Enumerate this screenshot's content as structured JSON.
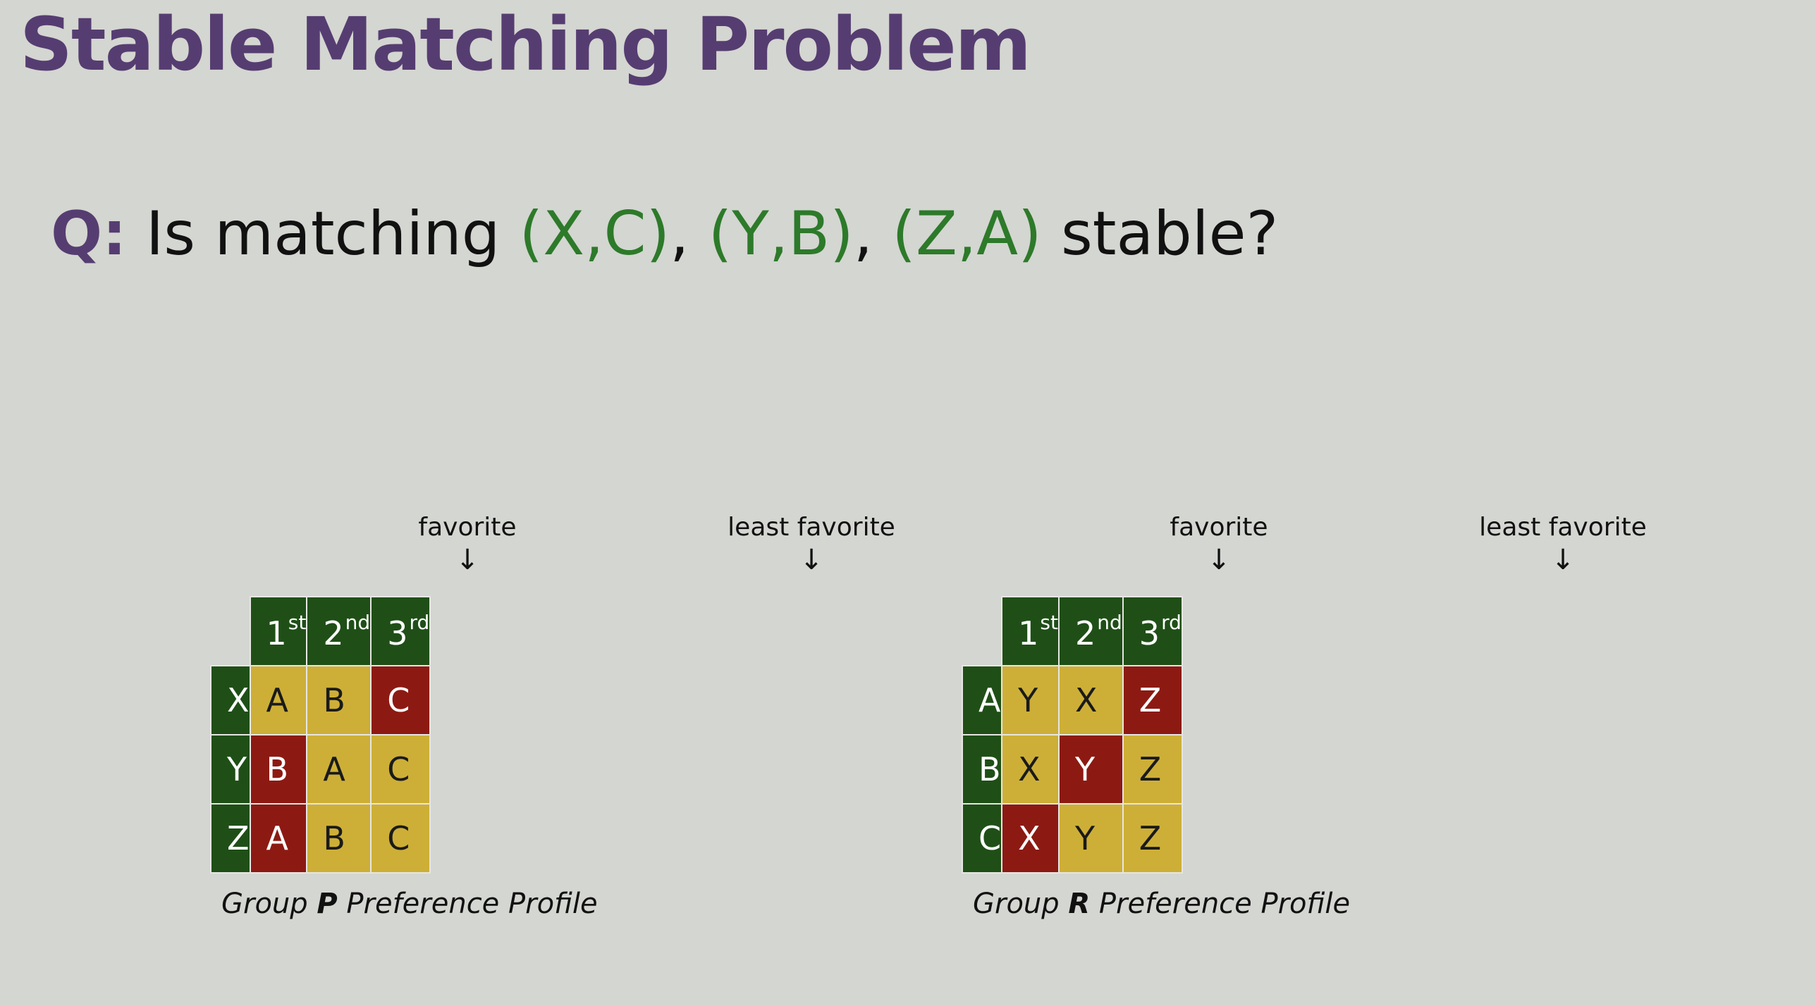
{
  "title": "Stable Matching Problem",
  "question": {
    "label": "Q:",
    "text_before": " Is matching ",
    "pairs": [
      "(X,C)",
      "(Y,B)",
      "(Z,A)"
    ],
    "separator": ", ",
    "text_after": " stable?"
  },
  "pointers": {
    "favorite": "favorite",
    "least_favorite": "least favorite",
    "arrow": "↓"
  },
  "ranks": [
    {
      "num": "1",
      "suffix": "st"
    },
    {
      "num": "2",
      "suffix": "nd"
    },
    {
      "num": "3",
      "suffix": "rd"
    }
  ],
  "colors": {
    "title": "#563d71",
    "pair": "#2d7a2a",
    "header_green": "#1f4f17",
    "cell_yellow": "#cdaf37",
    "cell_red": "#8c1a13",
    "background": "#d4d6d1"
  },
  "group_p": {
    "caption_prefix": "Group ",
    "caption_group": "P",
    "caption_suffix": " Preference Profile",
    "rows": [
      {
        "agent": "X",
        "prefs": [
          "A",
          "B",
          "C"
        ],
        "highlight": [
          false,
          false,
          true
        ]
      },
      {
        "agent": "Y",
        "prefs": [
          "B",
          "A",
          "C"
        ],
        "highlight": [
          true,
          false,
          false
        ]
      },
      {
        "agent": "Z",
        "prefs": [
          "A",
          "B",
          "C"
        ],
        "highlight": [
          true,
          false,
          false
        ]
      }
    ]
  },
  "group_r": {
    "caption_prefix": "Group ",
    "caption_group": "R",
    "caption_suffix": " Preference Profile",
    "rows": [
      {
        "agent": "A",
        "prefs": [
          "Y",
          "X",
          "Z"
        ],
        "highlight": [
          false,
          false,
          true
        ]
      },
      {
        "agent": "B",
        "prefs": [
          "X",
          "Y",
          "Z"
        ],
        "highlight": [
          false,
          true,
          false
        ]
      },
      {
        "agent": "C",
        "prefs": [
          "X",
          "Y",
          "Z"
        ],
        "highlight": [
          true,
          false,
          false
        ]
      }
    ]
  }
}
